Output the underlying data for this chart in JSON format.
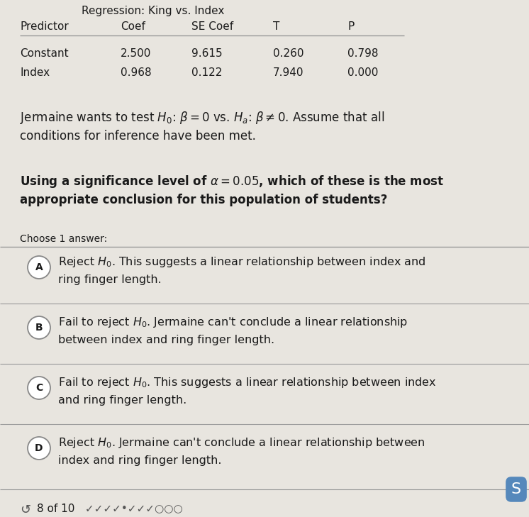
{
  "title": "Regression: King vs. Index",
  "table_headers": [
    "Predictor",
    "Coef",
    "SE Coef",
    "T",
    "P"
  ],
  "table_rows": [
    [
      "Constant",
      "2.500",
      "9.615",
      "0.260",
      "0.798"
    ],
    [
      "Index",
      "0.968",
      "0.122",
      "7.940",
      "0.000"
    ]
  ],
  "question_line2": "conditions for inference have been met.",
  "question2_line2": "appropriate conclusion for this population of students?",
  "choose_label": "Choose 1 answer:",
  "options": [
    {
      "letter": "A",
      "text_line1": "Reject $H_0$. This suggests a linear relationship between index and",
      "text_line2": "ring finger length."
    },
    {
      "letter": "B",
      "text_line1": "Fail to reject $H_0$. Jermaine can't conclude a linear relationship",
      "text_line2": "between index and ring finger length."
    },
    {
      "letter": "C",
      "text_line1": "Fail to reject $H_0$. This suggests a linear relationship between index",
      "text_line2": "and ring finger length."
    },
    {
      "letter": "D",
      "text_line1": "Reject $H_0$. Jermaine can't conclude a linear relationship between",
      "text_line2": "index and ring finger length."
    }
  ],
  "footer": "8 of 10",
  "bg_color": "#e8e5df",
  "text_color": "#1a1a1a",
  "divider_color": "#999999"
}
